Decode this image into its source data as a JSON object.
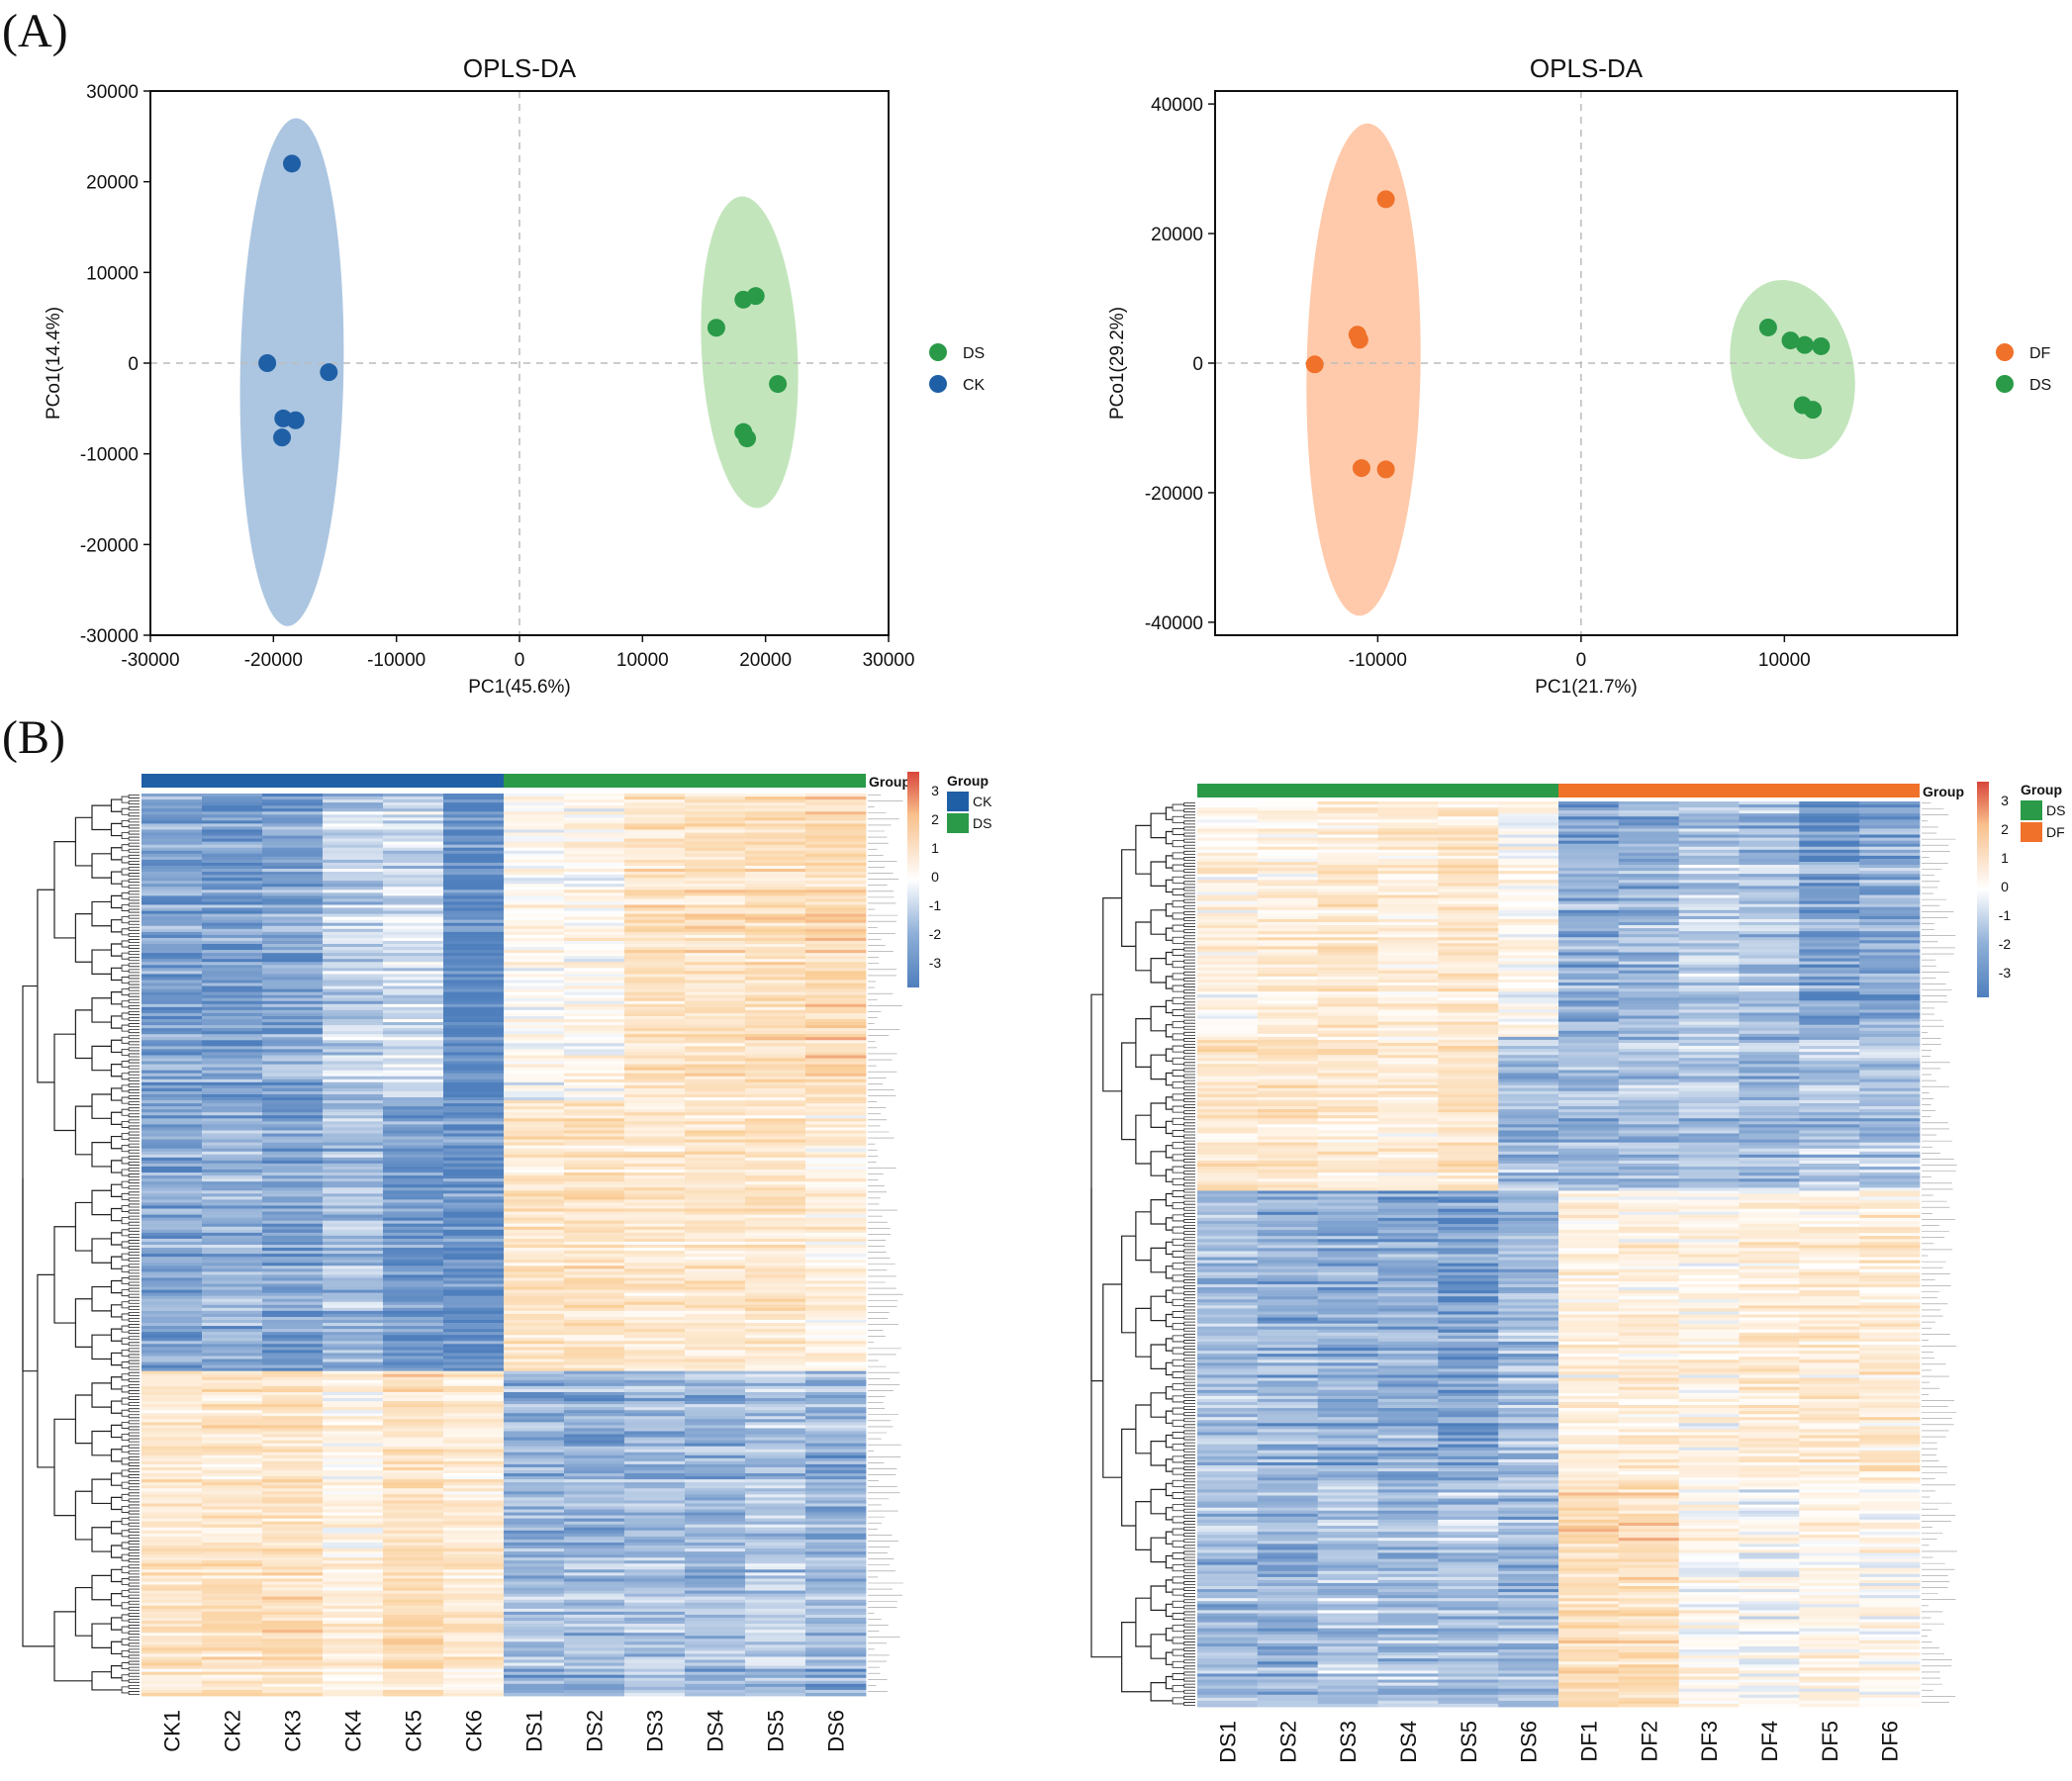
{
  "panel_labels": {
    "a": "(A)",
    "b": "(B)"
  },
  "colors": {
    "blue": "#1f5fa6",
    "green": "#2a9a48",
    "orange": "#f0712a",
    "ellipse_blue": "#9dbcdc",
    "ellipse_green": "#b8e0b0",
    "ellipse_orange": "#ffc19c",
    "heat_low": "#4f7fbd",
    "heat_mid": "#ffffff",
    "heat_high": "#d8463a"
  },
  "chart_data": [
    {
      "type": "scatter",
      "title": "OPLS-DA",
      "xlabel": "PC1(45.6%)",
      "ylabel": "PCo1(14.4%)",
      "xlim": [
        -30000,
        30000
      ],
      "ylim": [
        -30000,
        30000
      ],
      "xticks": [
        -30000,
        -20000,
        -10000,
        0,
        10000,
        20000,
        30000
      ],
      "yticks": [
        -30000,
        -20000,
        -10000,
        0,
        10000,
        20000,
        30000
      ],
      "legend": [
        "DS",
        "CK"
      ],
      "series": [
        {
          "name": "DS",
          "color": "#2a9a48",
          "ellipse": "#b8e0b0",
          "ellipse_fit": {
            "cx": 18700,
            "cy": 1200,
            "rx": 3900,
            "ry": 17200,
            "rot": -3
          },
          "points": [
            [
              16000,
              3900
            ],
            [
              18200,
              7000
            ],
            [
              19200,
              7400
            ],
            [
              21000,
              -2300
            ],
            [
              18200,
              -7600
            ],
            [
              18500,
              -8300
            ]
          ]
        },
        {
          "name": "CK",
          "color": "#1f5fa6",
          "ellipse": "#9dbcdc",
          "ellipse_fit": {
            "cx": -18500,
            "cy": -1000,
            "rx": 4200,
            "ry": 28000,
            "rot": 1
          },
          "points": [
            [
              -18500,
              22000
            ],
            [
              -20500,
              0
            ],
            [
              -15500,
              -1000
            ],
            [
              -19200,
              -6100
            ],
            [
              -18200,
              -6300
            ],
            [
              -19300,
              -8200
            ]
          ]
        }
      ]
    },
    {
      "type": "scatter",
      "title": "OPLS-DA",
      "xlabel": "PC1(21.7%)",
      "ylabel": "PCo1(29.2%)",
      "xlim": [
        -18000,
        18500
      ],
      "ylim": [
        -42000,
        42000
      ],
      "xticks": [
        -10000,
        0,
        10000
      ],
      "yticks": [
        -40000,
        -20000,
        0,
        20000,
        40000
      ],
      "legend": [
        "DF",
        "DS"
      ],
      "series": [
        {
          "name": "DF",
          "color": "#f0712a",
          "ellipse": "#ffc19c",
          "ellipse_fit": {
            "cx": -10700,
            "cy": -1000,
            "rx": 2800,
            "ry": 38000,
            "rot": 1
          },
          "points": [
            [
              -9600,
              25300
            ],
            [
              -11000,
              4400
            ],
            [
              -10900,
              3600
            ],
            [
              -13100,
              -200
            ],
            [
              -10800,
              -16200
            ],
            [
              -9600,
              -16400
            ]
          ]
        },
        {
          "name": "DS",
          "color": "#2a9a48",
          "ellipse": "#b8e0b0",
          "ellipse_fit": {
            "cx": 10400,
            "cy": -1000,
            "rx": 3000,
            "ry": 14000,
            "rot": -12
          },
          "points": [
            [
              9200,
              5500
            ],
            [
              10300,
              3500
            ],
            [
              11000,
              2800
            ],
            [
              11800,
              2600
            ],
            [
              10900,
              -6500
            ],
            [
              11400,
              -7200
            ]
          ]
        }
      ]
    },
    {
      "type": "heatmap",
      "columns": [
        "CK1",
        "CK2",
        "CK3",
        "CK4",
        "CK5",
        "CK6",
        "DS1",
        "DS2",
        "DS3",
        "DS4",
        "DS5",
        "DS6"
      ],
      "group_title": "Group",
      "groups": [
        {
          "name": "CK",
          "color": "#1f5fa6",
          "count": 6
        },
        {
          "name": "DS",
          "color": "#2a9a48",
          "count": 6
        }
      ],
      "scale_labels": [
        "3",
        "2",
        "1",
        "0",
        "-1",
        "-2",
        "-3"
      ],
      "clusters": [
        {
          "fraction": 0.34,
          "values": [
            -1.6,
            -1.7,
            -1.5,
            -0.8,
            -0.6,
            -2.0,
            0.1,
            0.2,
            1.0,
            1.0,
            1.1,
            1.3
          ]
        },
        {
          "fraction": 0.3,
          "values": [
            -1.5,
            -1.3,
            -1.6,
            -1.1,
            -1.8,
            -1.9,
            0.9,
            1.0,
            0.8,
            0.8,
            0.9,
            0.5
          ]
        },
        {
          "fraction": 0.36,
          "values": [
            0.8,
            0.9,
            1.0,
            0.4,
            1.1,
            0.7,
            -1.2,
            -1.3,
            -1.1,
            -1.2,
            -1.0,
            -1.3
          ]
        }
      ]
    },
    {
      "type": "heatmap",
      "columns": [
        "DS1",
        "DS2",
        "DS3",
        "DS4",
        "DS5",
        "DS6",
        "DF1",
        "DF2",
        "DF3",
        "DF4",
        "DF5",
        "DF6"
      ],
      "group_title": "Group",
      "groups": [
        {
          "name": "DS",
          "color": "#2a9a48",
          "count": 6
        },
        {
          "name": "DF",
          "color": "#f0712a",
          "count": 6
        }
      ],
      "scale_labels": [
        "3",
        "2",
        "1",
        "0",
        "-1",
        "-2",
        "-3"
      ],
      "clusters": [
        {
          "fraction": 0.26,
          "values": [
            0.4,
            0.6,
            0.8,
            0.7,
            0.9,
            0.2,
            -1.4,
            -1.3,
            -0.9,
            -1.1,
            -1.7,
            -1.4
          ]
        },
        {
          "fraction": 0.17,
          "values": [
            0.8,
            0.9,
            0.7,
            0.6,
            0.9,
            -1.2,
            -1.2,
            -1.1,
            -1.0,
            -1.3,
            -1.0,
            -1.1
          ]
        },
        {
          "fraction": 0.32,
          "values": [
            -1.2,
            -1.4,
            -1.5,
            -1.5,
            -1.7,
            -1.2,
            0.4,
            0.5,
            0.3,
            0.6,
            0.6,
            0.7
          ]
        },
        {
          "fraction": 0.25,
          "values": [
            -1.1,
            -1.2,
            -0.9,
            -1.0,
            -1.0,
            -1.2,
            1.2,
            1.2,
            0.2,
            0.0,
            0.4,
            0.3
          ]
        }
      ]
    }
  ]
}
